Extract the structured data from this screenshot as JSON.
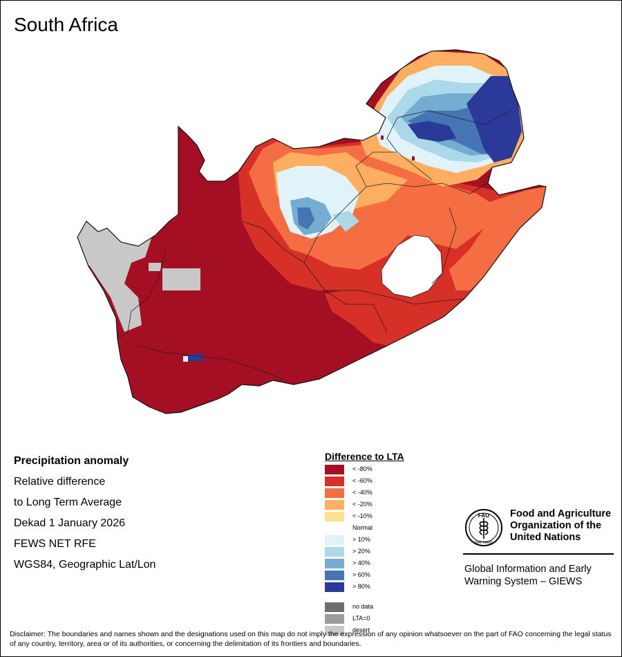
{
  "map": {
    "title": "South Africa"
  },
  "info": {
    "heading": "Precipitation anomaly",
    "line1": "Relative difference",
    "line2": "to Long Term Average",
    "period": "Dekad 1 January 2026",
    "source": "FEWS NET RFE",
    "projection": "WGS84, Geographic Lat/Lon"
  },
  "legend": {
    "title": "Difference to LTA",
    "classes": [
      {
        "label": "< -80%",
        "color": "#A50F24"
      },
      {
        "label": "< -60%",
        "color": "#D73027"
      },
      {
        "label": "< -40%",
        "color": "#F46D43"
      },
      {
        "label": "< -20%",
        "color": "#FDAE61"
      },
      {
        "label": "< -10%",
        "color": "#FEE090"
      },
      {
        "label": "Normal",
        "color": "#FFFFFF"
      },
      {
        "label": "> 10%",
        "color": "#E0F3F8"
      },
      {
        "label": "> 20%",
        "color": "#ABD9E9"
      },
      {
        "label": "> 40%",
        "color": "#74ADD1"
      },
      {
        "label": "> 60%",
        "color": "#4575B4"
      },
      {
        "label": "> 80%",
        "color": "#2B3A99"
      }
    ],
    "special": [
      {
        "label": "no data",
        "color": "#6E6E6E"
      },
      {
        "label": "LTA=0",
        "color": "#9C9C9C"
      },
      {
        "label": "desert",
        "color": "#C8C8C8"
      }
    ]
  },
  "logo": {
    "org_name": "Food and Agriculture Organization of the United Nations",
    "emblem_top": "FAO",
    "emblem_motto": "FIAT PANIS",
    "system_name": "Global Information and Early Warning System – GIEWS"
  },
  "disclaimer": "Disclaimer: The boundaries and names shown and the designations used on this map do not imply the expression of any opinion whatsoever on the part of FAO concerning the legal status of any country, territory, area or of its authorities, or concerning the delimitation of its frontiers and boundaries."
}
